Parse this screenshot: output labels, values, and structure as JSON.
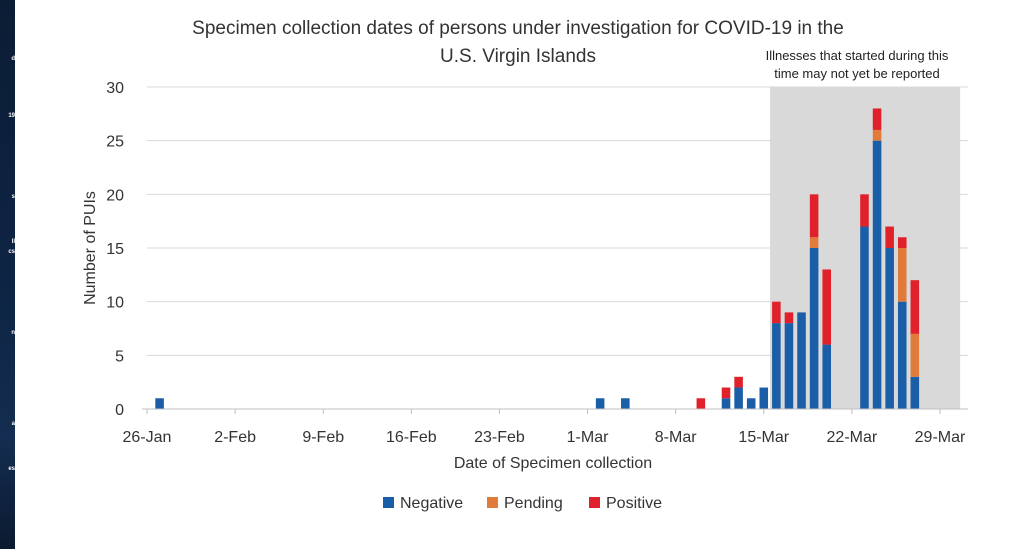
{
  "side_strip": {
    "fragments": [
      "d",
      "19",
      "s",
      "ll",
      "cs",
      "n",
      "a",
      "es"
    ]
  },
  "chart_data": {
    "type": "bar",
    "stacked": true,
    "title_lines": [
      "Specimen collection dates of persons under investigation for COVID-19 in the",
      "U.S. Virgin Islands"
    ],
    "xlabel": "Date of Specimen collection",
    "ylabel": "Number of PUIs",
    "ylim": [
      0,
      30
    ],
    "yticks": [
      0,
      5,
      10,
      15,
      20,
      25,
      30
    ],
    "grid": true,
    "x_start": "2020-01-26",
    "x_end": "2020-03-29",
    "xtick_labels": [
      "26-Jan",
      "2-Feb",
      "9-Feb",
      "16-Feb",
      "23-Feb",
      "1-Mar",
      "8-Mar",
      "15-Mar",
      "22-Mar",
      "29-Mar"
    ],
    "xtick_dates": [
      "2020-01-26",
      "2020-02-02",
      "2020-02-09",
      "2020-02-16",
      "2020-02-23",
      "2020-03-01",
      "2020-03-08",
      "2020-03-15",
      "2020-03-22",
      "2020-03-29"
    ],
    "shaded_region": {
      "start": "2020-03-16",
      "end": "2020-03-31",
      "label_lines": [
        "Illnesses that started during this",
        "time may not yet be reported"
      ],
      "color": "#d9d9d9"
    },
    "legend_position": "bottom",
    "series": [
      {
        "name": "Negative",
        "color": "#1a5ea8"
      },
      {
        "name": "Pending",
        "color": "#e07b39"
      },
      {
        "name": "Positive",
        "color": "#e0202a"
      }
    ],
    "dates": [
      "2020-01-27",
      "2020-03-02",
      "2020-03-04",
      "2020-03-10",
      "2020-03-12",
      "2020-03-13",
      "2020-03-14",
      "2020-03-15",
      "2020-03-16",
      "2020-03-17",
      "2020-03-18",
      "2020-03-19",
      "2020-03-20",
      "2020-03-21",
      "2020-03-23",
      "2020-03-24",
      "2020-03-25",
      "2020-03-26",
      "2020-03-27"
    ],
    "values": {
      "Negative": [
        1,
        1,
        1,
        0,
        1,
        2,
        1,
        2,
        8,
        8,
        9,
        15,
        6,
        0,
        17,
        25,
        15,
        10,
        3
      ],
      "Pending": [
        0,
        0,
        0,
        0,
        0,
        0,
        0,
        0,
        0,
        0,
        0,
        1,
        0,
        0,
        0,
        1,
        0,
        5,
        4
      ],
      "Positive": [
        0,
        0,
        0,
        1,
        1,
        1,
        0,
        0,
        2,
        1,
        0,
        4,
        7,
        0,
        3,
        2,
        2,
        1,
        5
      ]
    }
  }
}
